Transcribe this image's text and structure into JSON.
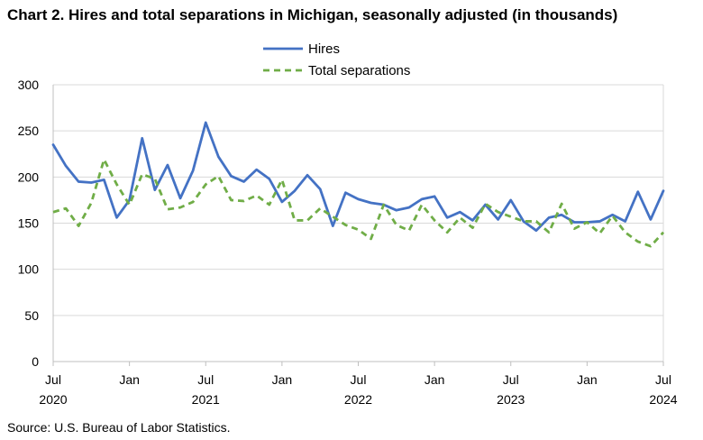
{
  "chart_data": {
    "type": "line",
    "title": "Chart 2. Hires and total separations in Michigan, seasonally adjusted (in thousands)",
    "xlabel": "",
    "ylabel": "",
    "ylim": [
      0,
      300
    ],
    "yticks": [
      0,
      50,
      100,
      150,
      200,
      250,
      300
    ],
    "grid": true,
    "legend_position": "top-center",
    "x_tick_labels": [
      {
        "index": 0,
        "month": "Jul",
        "year": "2020"
      },
      {
        "index": 6,
        "month": "Jan",
        "year": ""
      },
      {
        "index": 12,
        "month": "Jul",
        "year": "2021"
      },
      {
        "index": 18,
        "month": "Jan",
        "year": ""
      },
      {
        "index": 24,
        "month": "Jul",
        "year": "2022"
      },
      {
        "index": 30,
        "month": "Jan",
        "year": ""
      },
      {
        "index": 36,
        "month": "Jul",
        "year": "2023"
      },
      {
        "index": 42,
        "month": "Jan",
        "year": ""
      },
      {
        "index": 48,
        "month": "Jul",
        "year": "2024"
      }
    ],
    "series": [
      {
        "name": "Hires",
        "color": "#4472C4",
        "style": "solid",
        "values": [
          235,
          212,
          195,
          194,
          197,
          156,
          175,
          242,
          186,
          213,
          177,
          207,
          259,
          222,
          201,
          195,
          208,
          198,
          173,
          185,
          202,
          187,
          147,
          183,
          176,
          172,
          170,
          164,
          167,
          176,
          179,
          156,
          162,
          153,
          170,
          154,
          175,
          152,
          142,
          156,
          159,
          151,
          151,
          152,
          159,
          152,
          184,
          154,
          185
        ]
      },
      {
        "name": "Total separations",
        "color": "#70AD47",
        "style": "dashed",
        "values": [
          162,
          166,
          147,
          172,
          219,
          192,
          170,
          203,
          198,
          165,
          167,
          173,
          192,
          201,
          175,
          174,
          180,
          170,
          197,
          153,
          153,
          166,
          157,
          148,
          143,
          133,
          170,
          148,
          142,
          170,
          153,
          140,
          156,
          145,
          171,
          162,
          157,
          152,
          152,
          140,
          171,
          144,
          151,
          139,
          158,
          140,
          130,
          125,
          140
        ]
      }
    ]
  },
  "source": "Source: U.S. Bureau of Labor Statistics."
}
